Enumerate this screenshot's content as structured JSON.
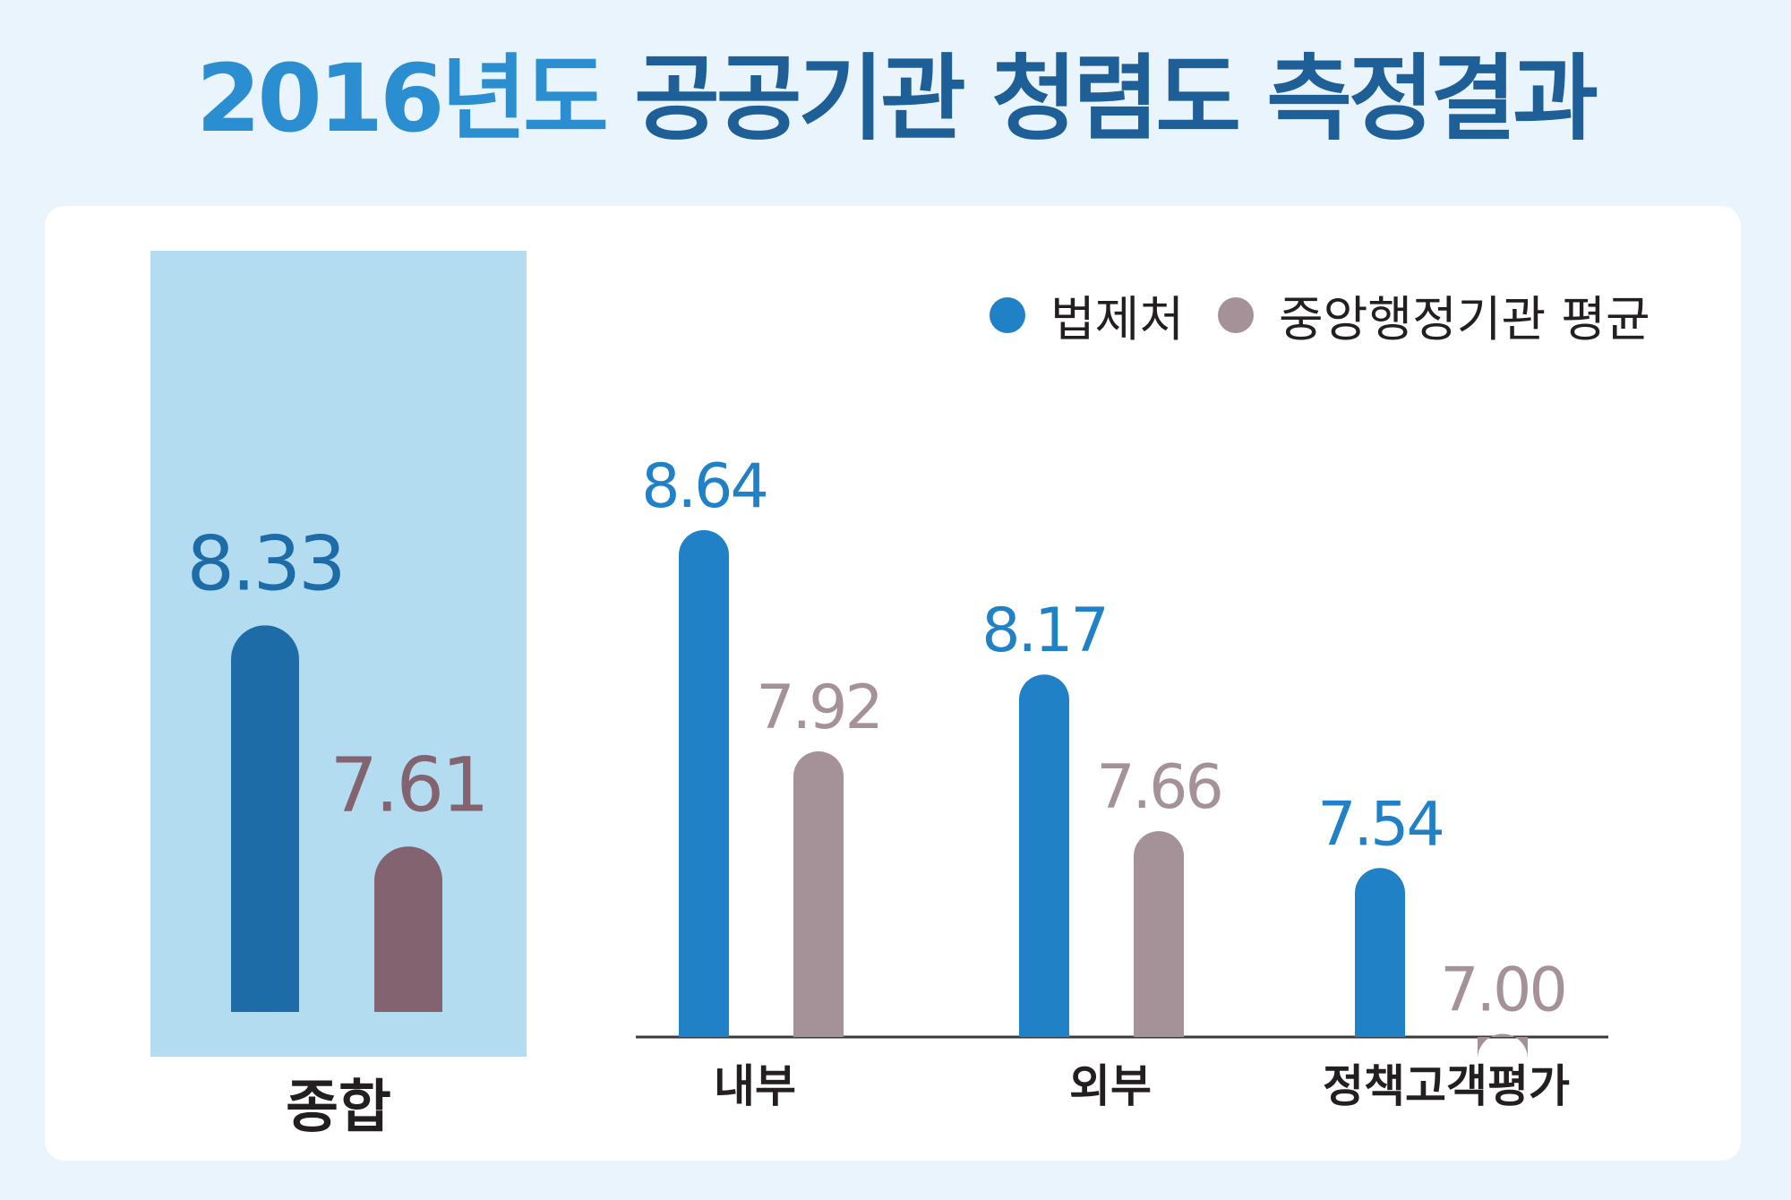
{
  "title": {
    "part1": "2016년도",
    "part2": "공공기관 청렴도 측정결과"
  },
  "colors": {
    "background": "#eaf4fc",
    "panel": "#ffffff",
    "highlight": "#b3dcf1",
    "total_primary": "#1e6ca7",
    "total_secondary": "#836370",
    "primary": "#2181c6",
    "secondary": "#a59299",
    "axis": "#3a3a3a",
    "title_part1": "#2b8ed0",
    "title_part2": "#1d5f96"
  },
  "chart_data": {
    "type": "bar",
    "categories": [
      "종합",
      "내부",
      "외부",
      "정책고객평가"
    ],
    "series": [
      {
        "name": "법제처",
        "values": [
          8.33,
          8.64,
          8.17,
          7.54
        ]
      },
      {
        "name": "중앙행정기관 평균",
        "values": [
          7.61,
          7.92,
          7.66,
          7.0
        ]
      }
    ],
    "value_labels": [
      [
        "8.33",
        "8.64",
        "8.17",
        "7.54"
      ],
      [
        "7.61",
        "7.92",
        "7.66",
        "7.00"
      ]
    ],
    "highlighted_category": "종합",
    "legend_position": "top-right",
    "grid": false,
    "title": "",
    "xlabel": "",
    "ylabel": ""
  }
}
